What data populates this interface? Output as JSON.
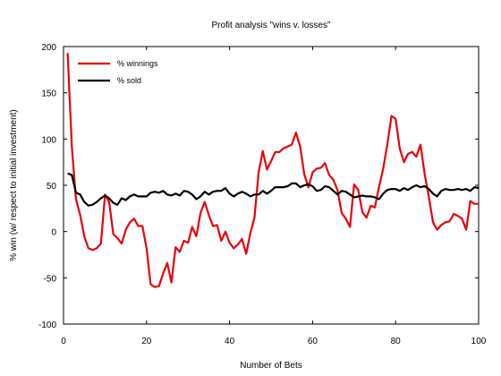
{
  "chart_data": {
    "type": "line",
    "title": "Profit analysis \"wins v. losses\"",
    "xlabel": "Number of Bets",
    "ylabel": "% win (w/ respect to initial investment)",
    "xlim": [
      0,
      100
    ],
    "ylim": [
      -100,
      200
    ],
    "xticks": [
      "0",
      "20",
      "40",
      "60",
      "80",
      "100"
    ],
    "yticks": [
      "-100",
      "-50",
      "0",
      "50",
      "100",
      "150",
      "200"
    ],
    "grid": false,
    "legend_position": "top-left",
    "x": [
      1,
      2,
      3,
      4,
      5,
      6,
      7,
      8,
      9,
      10,
      11,
      12,
      13,
      14,
      15,
      16,
      17,
      18,
      19,
      20,
      21,
      22,
      23,
      24,
      25,
      26,
      27,
      28,
      29,
      30,
      31,
      32,
      33,
      34,
      35,
      36,
      37,
      38,
      39,
      40,
      41,
      42,
      43,
      44,
      45,
      46,
      47,
      48,
      49,
      50,
      51,
      52,
      53,
      54,
      55,
      56,
      57,
      58,
      59,
      60,
      61,
      62,
      63,
      64,
      65,
      66,
      67,
      68,
      69,
      70,
      71,
      72,
      73,
      74,
      75,
      76,
      77,
      78,
      79,
      80,
      81,
      82,
      83,
      84,
      85,
      86,
      87,
      88,
      89,
      90,
      91,
      92,
      93,
      94,
      95,
      96,
      97,
      98,
      99,
      100
    ],
    "series": [
      {
        "name": "% winnings",
        "color": "#e8000b",
        "values": [
          193,
          92,
          35,
          18,
          -5,
          -18,
          -20,
          -18,
          -13,
          40,
          32,
          -3,
          -7,
          -13,
          2,
          10,
          14,
          6,
          6,
          -18,
          -57,
          -60,
          -59,
          -45,
          -34,
          -55,
          -17,
          -22,
          -10,
          -12,
          5,
          -5,
          20,
          32,
          18,
          6,
          7,
          -10,
          0,
          -12,
          -18,
          -14,
          -8,
          -24,
          -2,
          15,
          64,
          87,
          67,
          76,
          86,
          86,
          90,
          92,
          94,
          107,
          92,
          62,
          48,
          64,
          68,
          69,
          74,
          61,
          56,
          45,
          20,
          14,
          5,
          51,
          45,
          21,
          15,
          28,
          26,
          48,
          68,
          94,
          125,
          122,
          90,
          75,
          84,
          86,
          81,
          94,
          62,
          38,
          10,
          2,
          7,
          10,
          11,
          19,
          17,
          14,
          2,
          33,
          30,
          30
        ]
      },
      {
        "name": "% sold",
        "color": "#000000",
        "values": [
          63,
          61,
          42,
          40,
          32,
          28,
          29,
          32,
          36,
          39,
          36,
          31,
          29,
          36,
          34,
          38,
          40,
          38,
          38,
          38,
          42,
          43,
          42,
          44,
          40,
          39,
          41,
          39,
          44,
          43,
          40,
          35,
          38,
          43,
          40,
          43,
          44,
          44,
          47,
          41,
          38,
          41,
          43,
          41,
          38,
          40,
          40,
          44,
          41,
          44,
          48,
          48,
          48,
          49,
          52,
          52,
          48,
          50,
          51,
          49,
          44,
          45,
          49,
          48,
          44,
          40,
          44,
          43,
          40,
          37,
          38,
          39,
          38,
          38,
          37,
          35,
          41,
          45,
          46,
          46,
          44,
          47,
          45,
          48,
          50,
          48,
          49,
          46,
          41,
          38,
          44,
          46,
          45,
          45,
          46,
          45,
          46,
          44,
          48,
          47
        ]
      }
    ]
  }
}
